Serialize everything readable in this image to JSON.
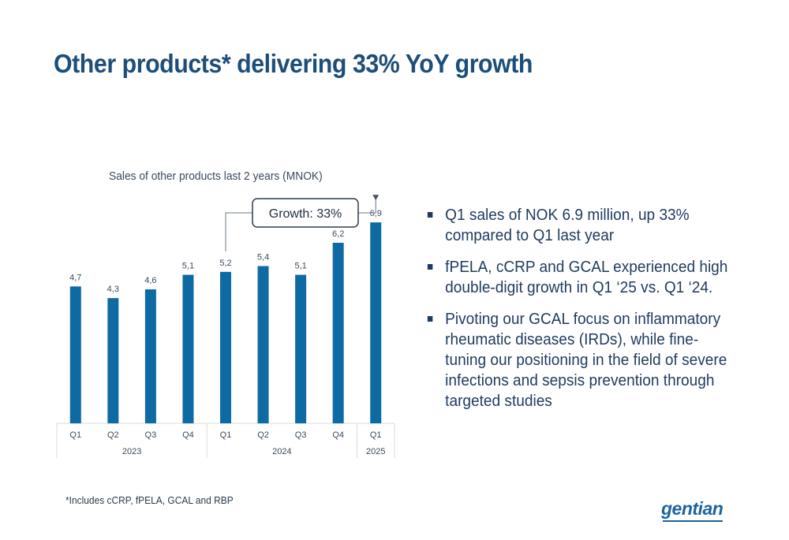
{
  "title": "Other products* delivering 33% YoY growth",
  "chart_data": {
    "type": "bar",
    "title": "Sales of other products last 2 years (MNOK)",
    "categories": [
      "Q1",
      "Q2",
      "Q3",
      "Q4",
      "Q1",
      "Q2",
      "Q3",
      "Q4",
      "Q1"
    ],
    "years": [
      {
        "label": "2023",
        "span": 4
      },
      {
        "label": "2024",
        "span": 4
      },
      {
        "label": "2025",
        "span": 1
      }
    ],
    "values": [
      4.7,
      4.3,
      4.6,
      5.1,
      5.2,
      5.4,
      5.1,
      6.2,
      6.9
    ],
    "value_labels": [
      "4,7",
      "4,3",
      "4,6",
      "5,1",
      "5,2",
      "5,4",
      "5,1",
      "6,2",
      "6,9"
    ],
    "ylim": [
      0,
      7.2
    ],
    "color": "#0e6aa3",
    "annotation": {
      "text": "Growth: 33%",
      "from_index": 4,
      "to_index": 8
    }
  },
  "bullets": [
    "Q1 sales of NOK 6.9 million, up 33% compared to Q1 last year",
    "fPELA, cCRP and GCAL experienced high double-digit growth in Q1 ‘25 vs. Q1 ‘24.",
    "Pivoting our GCAL focus on inflammatory rheumatic diseases (IRDs), while fine-tuning our positioning in the field of severe infections and sepsis prevention through targeted studies"
  ],
  "footnote": "*Includes cCRP, fPELA, GCAL and RBP",
  "logo": "gentian"
}
